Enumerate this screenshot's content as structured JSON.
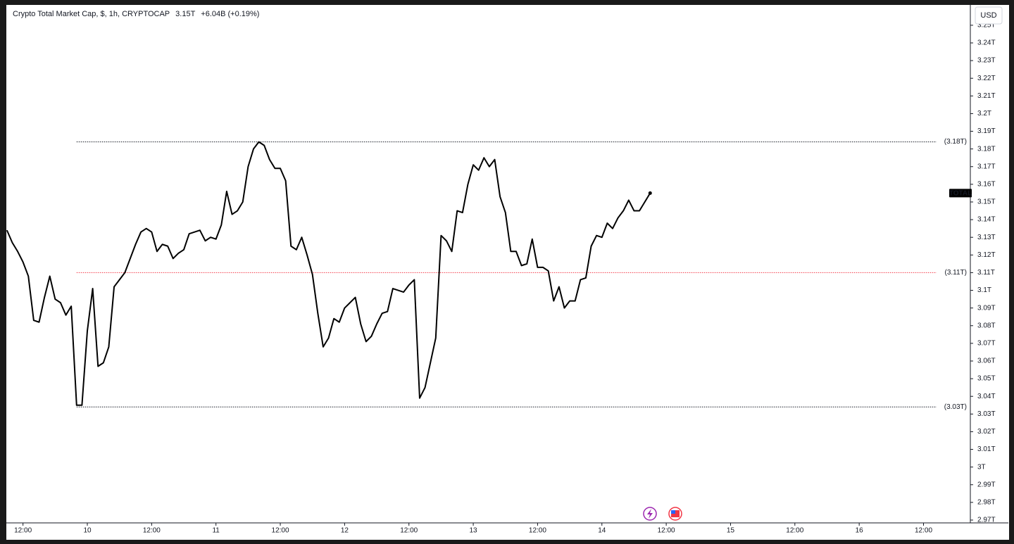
{
  "chart_data": {
    "type": "line",
    "title": "Crypto Total Market Cap, $, 1h, CRYPTOCAP",
    "last": "3.15T",
    "change": "+6.04B (+0.19%)",
    "currency": "USD",
    "series_name": "TOTAL",
    "color": "#000000",
    "x": [
      9.375,
      9.4167,
      9.4583,
      9.5,
      9.5417,
      9.5833,
      9.625,
      9.6667,
      9.7083,
      9.75,
      9.7917,
      9.8333,
      9.875,
      9.9167,
      9.9583,
      10,
      10.0417,
      10.0833,
      10.125,
      10.1667,
      10.2083,
      10.25,
      10.2917,
      10.3333,
      10.375,
      10.4167,
      10.4583,
      10.5,
      10.5417,
      10.5833,
      10.625,
      10.6667,
      10.7083,
      10.75,
      10.7917,
      10.8333,
      10.875,
      10.9167,
      10.9583,
      11,
      11.0417,
      11.0833,
      11.125,
      11.1667,
      11.2083,
      11.25,
      11.2917,
      11.3333,
      11.375,
      11.4167,
      11.4583,
      11.5,
      11.5417,
      11.5833,
      11.625,
      11.6667,
      11.7083,
      11.75,
      11.7917,
      11.8333,
      11.875,
      11.9167,
      11.9583,
      12,
      12.0417,
      12.0833,
      12.125,
      12.1667,
      12.2083,
      12.25,
      12.2917,
      12.3333,
      12.375,
      12.4167,
      12.4583,
      12.5,
      12.5417,
      12.5833,
      12.625,
      12.6667,
      12.7083,
      12.75,
      12.7917,
      12.8333,
      12.875,
      12.9167,
      12.9583,
      13,
      13.0417,
      13.0833,
      13.125,
      13.1667,
      13.2083,
      13.25,
      13.2917,
      13.3333,
      13.375,
      13.4167,
      13.4583,
      13.5,
      13.5417,
      13.5833,
      13.625,
      13.6667,
      13.7083,
      13.75,
      13.7917,
      13.8333,
      13.875,
      13.9167,
      13.9583,
      14,
      14.0417,
      14.0833,
      14.125,
      14.1667,
      14.2083,
      14.25,
      14.2917,
      14.3333,
      14.375
    ],
    "values": [
      3.134,
      3.127,
      3.122,
      3.116,
      3.108,
      3.083,
      3.082,
      3.096,
      3.108,
      3.095,
      3.093,
      3.086,
      3.091,
      3.035,
      3.035,
      3.077,
      3.101,
      3.057,
      3.059,
      3.068,
      3.102,
      3.106,
      3.11,
      3.118,
      3.126,
      3.133,
      3.135,
      3.133,
      3.122,
      3.126,
      3.125,
      3.118,
      3.121,
      3.123,
      3.132,
      3.133,
      3.134,
      3.128,
      3.13,
      3.129,
      3.137,
      3.156,
      3.143,
      3.145,
      3.15,
      3.17,
      3.18,
      3.184,
      3.182,
      3.174,
      3.169,
      3.169,
      3.162,
      3.125,
      3.123,
      3.13,
      3.12,
      3.109,
      3.087,
      3.068,
      3.073,
      3.084,
      3.082,
      3.09,
      3.093,
      3.096,
      3.081,
      3.071,
      3.074,
      3.081,
      3.087,
      3.088,
      3.101,
      3.1,
      3.099,
      3.103,
      3.106,
      3.039,
      3.045,
      3.059,
      3.073,
      3.131,
      3.128,
      3.122,
      3.145,
      3.144,
      3.16,
      3.171,
      3.168,
      3.175,
      3.17,
      3.174,
      3.153,
      3.144,
      3.122,
      3.122,
      3.114,
      3.115,
      3.129,
      3.113,
      3.113,
      3.111,
      3.094,
      3.102,
      3.09,
      3.094,
      3.094,
      3.106,
      3.107,
      3.125,
      3.131,
      3.13,
      3.138,
      3.135,
      3.141,
      3.145,
      3.151,
      3.145,
      3.145,
      3.15,
      3.155
    ],
    "levels": [
      {
        "value": 3.184,
        "label": "(3.18T)",
        "color": "#131722",
        "x_start": 9.9167
      },
      {
        "value": 3.11,
        "label": "(3.11T)",
        "color": "#f23645",
        "x_start": 9.9167
      },
      {
        "value": 3.034,
        "label": "(3.03T)",
        "color": "#131722",
        "x_start": 9.9167
      }
    ],
    "xlim": [
      9.376,
      16.864
    ],
    "xticks": [
      {
        "value": 9.5,
        "label": "12:00"
      },
      10,
      {
        "value": 10.5,
        "label": "12:00"
      },
      11,
      {
        "value": 11.5,
        "label": "12:00"
      },
      12,
      {
        "value": 12.5,
        "label": "12:00"
      },
      13,
      {
        "value": 13.5,
        "label": "12:00"
      },
      14,
      {
        "value": 14.5,
        "label": "12:00"
      },
      15,
      {
        "value": 15.5,
        "label": "12:00"
      },
      16,
      {
        "value": 16.5,
        "label": "12:00"
      }
    ],
    "ylim": [
      2.9684,
      3.2611
    ],
    "yticks": [
      {
        "value": 2.97,
        "label": "2.97T"
      },
      {
        "value": 2.98,
        "label": "2.98T"
      },
      {
        "value": 2.99,
        "label": "2.99T"
      },
      {
        "value": 3.0,
        "label": "3T"
      },
      {
        "value": 3.01,
        "label": "3.01T"
      },
      {
        "value": 3.02,
        "label": "3.02T"
      },
      {
        "value": 3.03,
        "label": "3.03T"
      },
      {
        "value": 3.04,
        "label": "3.04T"
      },
      {
        "value": 3.05,
        "label": "3.05T"
      },
      {
        "value": 3.06,
        "label": "3.06T"
      },
      {
        "value": 3.07,
        "label": "3.07T"
      },
      {
        "value": 3.08,
        "label": "3.08T"
      },
      {
        "value": 3.09,
        "label": "3.09T"
      },
      {
        "value": 3.1,
        "label": "3.1T"
      },
      {
        "value": 3.11,
        "label": "3.11T"
      },
      {
        "value": 3.12,
        "label": "3.12T"
      },
      {
        "value": 3.13,
        "label": "3.13T"
      },
      {
        "value": 3.14,
        "label": "3.14T"
      },
      {
        "value": 3.15,
        "label": "3.15T"
      },
      {
        "value": 3.16,
        "label": "3.16T"
      },
      {
        "value": 3.17,
        "label": "3.17T"
      },
      {
        "value": 3.18,
        "label": "3.18T"
      },
      {
        "value": 3.19,
        "label": "3.19T"
      },
      {
        "value": 3.2,
        "label": "3.2T"
      },
      {
        "value": 3.21,
        "label": "3.21T"
      },
      {
        "value": 3.22,
        "label": "3.22T"
      },
      {
        "value": 3.23,
        "label": "3.23T"
      },
      {
        "value": 3.24,
        "label": "3.24T"
      },
      {
        "value": 3.25,
        "label": "3.25T"
      }
    ],
    "grid": false
  }
}
